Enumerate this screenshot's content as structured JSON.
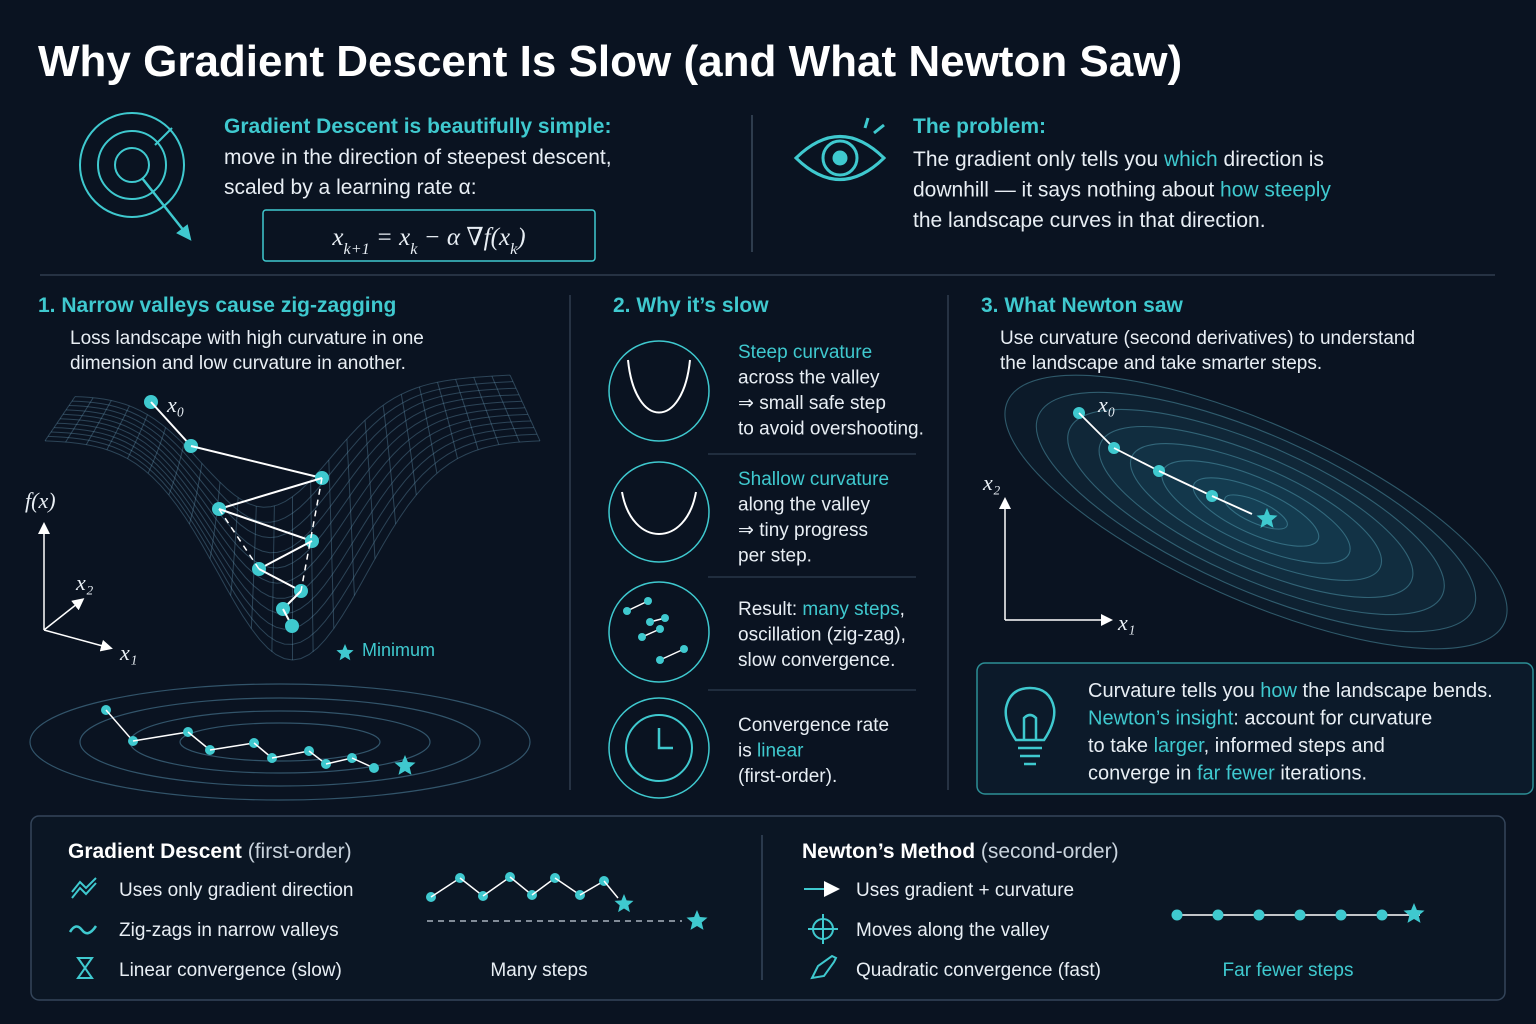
{
  "header": {
    "title": "Why Gradient Descent Is Slow (and What Newton Saw)"
  },
  "intro": {
    "left": {
      "heading": "Gradient Descent is beautifully simple:",
      "lines": [
        "move in the direction of steepest descent,",
        "scaled by a learning rate α:"
      ],
      "formula": [
        {
          "text": "x"
        },
        {
          "text": "k+1",
          "sub": true
        },
        {
          "text": " = x"
        },
        {
          "text": "k",
          "sub": true
        },
        {
          "text": " − α ∇f(x"
        },
        {
          "text": "k",
          "sub": true
        },
        {
          "text": ")"
        }
      ]
    },
    "right": {
      "heading": "The problem:",
      "lines": [
        [
          {
            "text": "The gradient only tells you "
          },
          {
            "text": "which",
            "accent": true
          },
          {
            "text": " direction is"
          }
        ],
        [
          {
            "text": "downhill — it says nothing about "
          },
          {
            "text": "how steeply",
            "accent": true
          }
        ],
        [
          {
            "text": "the landscape curves in that direction."
          }
        ]
      ]
    }
  },
  "sections": [
    {
      "heading": "1. Narrow valleys cause zig-zagging",
      "lines": [
        "Loss landscape with high curvature in one",
        "dimension and low curvature in another."
      ],
      "labels": {
        "fx": "f(x)",
        "x2": "x₂",
        "x1": "x₁",
        "x0": "x₀",
        "minimum": "Minimum"
      }
    },
    {
      "heading": "2. Why it’s slow",
      "items": [
        [
          [
            {
              "text": "Steep curvature",
              "accent": true
            }
          ],
          [
            {
              "text": "across the valley"
            }
          ],
          [
            {
              "text": "⇒ small safe step"
            }
          ],
          [
            {
              "text": "to avoid overshooting."
            }
          ]
        ],
        [
          [
            {
              "text": "Shallow curvature",
              "accent": true
            }
          ],
          [
            {
              "text": "along the valley"
            }
          ],
          [
            {
              "text": "⇒ tiny progress"
            }
          ],
          [
            {
              "text": "per step."
            }
          ]
        ],
        [
          [
            {
              "text": "Result: "
            },
            {
              "text": "many steps",
              "accent": true
            },
            {
              "text": ","
            }
          ],
          [
            {
              "text": "oscillation (zig-zag),"
            }
          ],
          [
            {
              "text": "slow convergence."
            }
          ]
        ],
        [
          [
            {
              "text": "Convergence rate"
            }
          ],
          [
            {
              "text": "is "
            },
            {
              "text": "linear",
              "accent": true
            }
          ],
          [
            {
              "text": "(first-order)."
            }
          ]
        ]
      ]
    },
    {
      "heading": "3. What Newton saw",
      "lines": [
        "Use curvature (second derivatives) to understand",
        "the landscape and take smarter steps."
      ],
      "labels": {
        "x2": "x₂",
        "x1": "x₁",
        "x0": "x₀"
      },
      "insight": [
        [
          {
            "text": "Curvature tells you "
          },
          {
            "text": "how",
            "accent": true
          },
          {
            "text": " the landscape bends."
          }
        ],
        [
          {
            "text": "Newton’s insight",
            "accent": true
          },
          {
            "text": ": account for curvature"
          }
        ],
        [
          {
            "text": "to take "
          },
          {
            "text": "larger",
            "accent": true
          },
          {
            "text": ", informed steps and"
          }
        ],
        [
          {
            "text": "converge in "
          },
          {
            "text": "far fewer",
            "accent": true
          },
          {
            "text": " iterations."
          }
        ]
      ]
    }
  ],
  "comparison": {
    "gd": {
      "title": [
        {
          "text": "Gradient Descent",
          "strong": true
        },
        {
          "text": " (first-order)"
        }
      ],
      "items": [
        "Uses only gradient direction",
        "Zig-zags in narrow valleys",
        "Linear convergence (slow)"
      ],
      "caption": "Many steps"
    },
    "newton": {
      "title": [
        {
          "text": "Newton’s Method",
          "strong": true
        },
        {
          "text": " (second-order)"
        }
      ],
      "items": [
        "Uses gradient + curvature",
        "Moves along the valley",
        "Quadratic convergence (fast)"
      ],
      "caption": "Far fewer steps"
    }
  }
}
